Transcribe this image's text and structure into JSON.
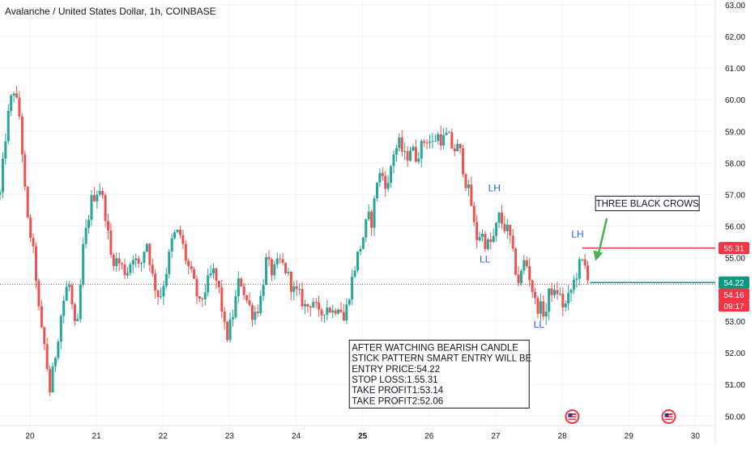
{
  "header": {
    "title": "Avalanche / United States Dollar, 1h, COINBASE"
  },
  "chart_data": {
    "type": "candlestick",
    "title": "Avalanche / United States Dollar, 1h, COINBASE",
    "ylim": [
      49.7,
      63.15
    ],
    "xlim": [
      19.55,
      30.3
    ],
    "y_ticks": [
      "50.00",
      "51.00",
      "52.00",
      "53.00",
      "54.00",
      "55.00",
      "56.00",
      "57.00",
      "58.00",
      "59.00",
      "60.00",
      "61.00",
      "62.00",
      "63.00"
    ],
    "x_ticks": [
      {
        "v": 20,
        "label": "20",
        "bold": false
      },
      {
        "v": 21,
        "label": "21",
        "bold": false
      },
      {
        "v": 22,
        "label": "22",
        "bold": false
      },
      {
        "v": 23,
        "label": "23",
        "bold": false
      },
      {
        "v": 24,
        "label": "24",
        "bold": false
      },
      {
        "v": 25,
        "label": "25",
        "bold": true
      },
      {
        "v": 26,
        "label": "26",
        "bold": false
      },
      {
        "v": 27,
        "label": "27",
        "bold": false
      },
      {
        "v": 28,
        "label": "28",
        "bold": false
      },
      {
        "v": 29,
        "label": "29",
        "bold": false
      },
      {
        "v": 30,
        "label": "30",
        "bold": false
      }
    ],
    "grid": true,
    "up_color": "#26a69a",
    "down_color": "#ef5350",
    "price_path": [
      [
        19.55,
        57.0
      ],
      [
        19.65,
        59.2
      ],
      [
        19.75,
        60.4
      ],
      [
        19.85,
        59.4
      ],
      [
        19.95,
        56.3
      ],
      [
        20.02,
        55.6
      ],
      [
        20.08,
        54.7
      ],
      [
        20.15,
        52.9
      ],
      [
        20.22,
        52.2
      ],
      [
        20.3,
        50.8
      ],
      [
        20.38,
        51.9
      ],
      [
        20.48,
        53.4
      ],
      [
        20.58,
        54.3
      ],
      [
        20.7,
        52.4
      ],
      [
        20.8,
        55.3
      ],
      [
        20.92,
        56.8
      ],
      [
        21.0,
        57.1
      ],
      [
        21.05,
        57.2
      ],
      [
        21.12,
        56.6
      ],
      [
        21.22,
        55.0
      ],
      [
        21.32,
        54.9
      ],
      [
        21.45,
        54.5
      ],
      [
        21.55,
        55.1
      ],
      [
        21.65,
        54.6
      ],
      [
        21.75,
        55.6
      ],
      [
        21.85,
        54.3
      ],
      [
        21.95,
        53.7
      ],
      [
        22.05,
        54.6
      ],
      [
        22.15,
        55.7
      ],
      [
        22.25,
        55.8
      ],
      [
        22.35,
        54.9
      ],
      [
        22.45,
        54.3
      ],
      [
        22.55,
        53.5
      ],
      [
        22.65,
        54.1
      ],
      [
        22.75,
        54.6
      ],
      [
        22.85,
        53.9
      ],
      [
        22.95,
        52.4
      ],
      [
        23.05,
        53.2
      ],
      [
        23.15,
        54.4
      ],
      [
        23.25,
        53.7
      ],
      [
        23.35,
        53.2
      ],
      [
        23.45,
        53.5
      ],
      [
        23.55,
        54.9
      ],
      [
        23.65,
        54.5
      ],
      [
        23.75,
        54.9
      ],
      [
        23.85,
        54.6
      ],
      [
        23.95,
        54.0
      ],
      [
        24.05,
        53.8
      ],
      [
        24.15,
        53.4
      ],
      [
        24.25,
        53.7
      ],
      [
        24.35,
        53.1
      ],
      [
        24.45,
        53.5
      ],
      [
        24.55,
        53.3
      ],
      [
        24.65,
        53.6
      ],
      [
        24.72,
        53.0
      ],
      [
        24.8,
        53.9
      ],
      [
        24.9,
        54.9
      ],
      [
        25.0,
        55.6
      ],
      [
        25.08,
        56.3
      ],
      [
        25.15,
        56.1
      ],
      [
        25.2,
        57.4
      ],
      [
        25.28,
        57.7
      ],
      [
        25.38,
        57.2
      ],
      [
        25.45,
        58.3
      ],
      [
        25.55,
        58.6
      ],
      [
        25.65,
        58.1
      ],
      [
        25.72,
        58.5
      ],
      [
        25.8,
        58.2
      ],
      [
        25.88,
        58.5
      ],
      [
        25.95,
        58.8
      ],
      [
        26.05,
        58.6
      ],
      [
        26.12,
        58.9
      ],
      [
        26.2,
        58.7
      ],
      [
        26.28,
        58.9
      ],
      [
        26.36,
        58.4
      ],
      [
        26.45,
        58.5
      ],
      [
        26.55,
        57.4
      ],
      [
        26.62,
        56.9
      ],
      [
        26.7,
        55.6
      ],
      [
        26.78,
        55.8
      ],
      [
        26.86,
        55.4
      ],
      [
        26.95,
        55.5
      ],
      [
        27.05,
        56.3
      ],
      [
        27.12,
        56.0
      ],
      [
        27.2,
        55.8
      ],
      [
        27.28,
        54.8
      ],
      [
        27.35,
        54.2
      ],
      [
        27.44,
        55.0
      ],
      [
        27.52,
        54.3
      ],
      [
        27.6,
        53.5
      ],
      [
        27.68,
        53.4
      ],
      [
        27.75,
        53.2
      ],
      [
        27.82,
        54.1
      ],
      [
        27.88,
        53.8
      ],
      [
        27.94,
        54.0
      ],
      [
        28.0,
        53.5
      ],
      [
        28.06,
        53.5
      ],
      [
        28.12,
        53.9
      ],
      [
        28.2,
        54.4
      ],
      [
        28.28,
        54.9
      ],
      [
        28.35,
        54.7
      ],
      [
        28.42,
        54.22
      ]
    ]
  },
  "price_axis": {
    "stop_loss_label": "55.31",
    "last_price_label": "54.22",
    "open_price_label": "54.16",
    "countdown": "09:17"
  },
  "levels": {
    "stop_loss": 55.31,
    "entry": 54.22,
    "dotted": 54.16,
    "stop_loss_color": "#f23645",
    "entry_color": "#089981"
  },
  "annotations": {
    "crows_label": "THREE BLACK CROWS",
    "lh_label_1": "LH",
    "lh_label_2": "LH",
    "ll_label_1": "LL",
    "ll_label_2": "LL",
    "label_color": "#2962ff",
    "arrow_color": "#4caf50"
  },
  "note": {
    "lines": [
      "AFTER WATCHING BEARISH CANDLE",
      "STICK PATTERN SMART ENTRY WILL BE",
      "ENTRY PRICE:54.22",
      "STOP LOSS:1.55.31",
      "TAKE PROFIT1:53.14",
      "TAKE PROFIT2:52.06"
    ]
  },
  "events": {
    "icon": "us-flag-event-icon",
    "dates": [
      28.15,
      29.6
    ]
  }
}
